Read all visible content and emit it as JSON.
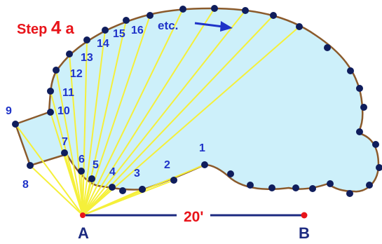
{
  "step": {
    "prefix": "Step ",
    "number": "4",
    "suffix": " a"
  },
  "etc_label": "etc.",
  "distance_label": "20'",
  "point_a_label": "A",
  "point_b_label": "B",
  "colors": {
    "pool_fill": "#cdf0fa",
    "outline": "#8b5a2b",
    "stake": "#0f1d5c",
    "sight_line": "#f5f03a",
    "baseline": "#1c2a80",
    "label_blue": "#1f33c8",
    "label_red": "#e8141a",
    "point_b": "#e8141a"
  },
  "numbered_stakes": [
    {
      "label": "1",
      "id": 1
    },
    {
      "label": "2",
      "id": 2
    },
    {
      "label": "3",
      "id": 3
    },
    {
      "label": "4",
      "id": 4
    },
    {
      "label": "5",
      "id": 5
    },
    {
      "label": "6",
      "id": 6
    },
    {
      "label": "7",
      "id": 7
    },
    {
      "label": "8",
      "id": 8
    },
    {
      "label": "9",
      "id": 9
    },
    {
      "label": "10",
      "id": 10
    },
    {
      "label": "11",
      "id": 11
    },
    {
      "label": "12",
      "id": 12
    },
    {
      "label": "13",
      "id": 13
    },
    {
      "label": "14",
      "id": 14
    },
    {
      "label": "15",
      "id": 15
    },
    {
      "label": "16",
      "id": 16
    }
  ]
}
